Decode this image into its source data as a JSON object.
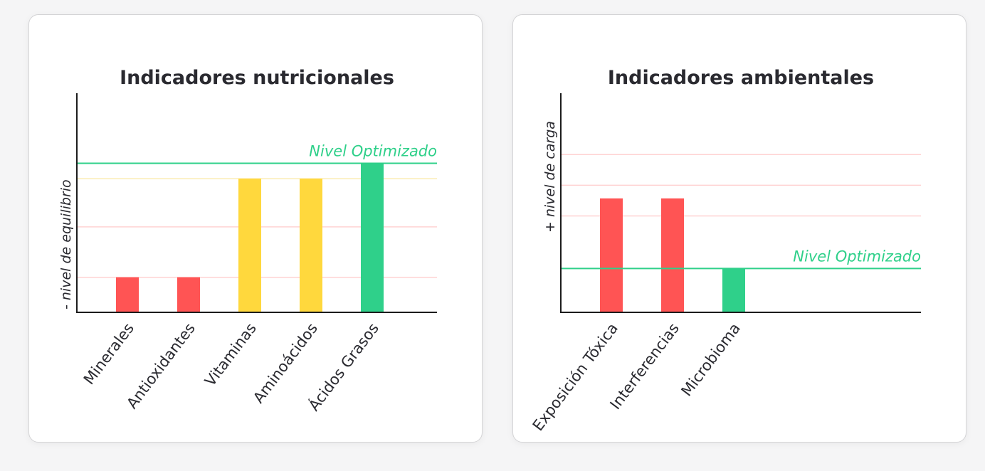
{
  "colors": {
    "red": "#ff5454",
    "yellow": "#ffd83d",
    "green": "#2fd08a",
    "grid_red": "#ffd2d2",
    "grid_yellow": "#fcecb2",
    "axis": "#1c1c1c",
    "text": "#2a2a30"
  },
  "chart_data": [
    {
      "type": "bar",
      "title": "Indicadores nutricionales",
      "ylabel": "- nivel de equilibrio",
      "xlabel": "",
      "categories": [
        "Minerales",
        "Antioxidantes",
        "Vitaminas",
        "Aminoácidos",
        "Ácidos Grasos"
      ],
      "values": [
        16,
        16,
        61,
        61,
        68
      ],
      "bar_colors": [
        "red",
        "red",
        "yellow",
        "yellow",
        "green"
      ],
      "ylim": [
        0,
        100
      ],
      "reference_lines": [
        {
          "value": 16,
          "color": "grid_red"
        },
        {
          "value": 39,
          "color": "grid_red"
        },
        {
          "value": 61,
          "color": "grid_yellow"
        }
      ],
      "optimal_line": {
        "value": 68,
        "label": "Nivel Optimizado",
        "color": "green"
      },
      "grid": false,
      "legend": "none"
    },
    {
      "type": "bar",
      "title": "Indicadores ambientales",
      "ylabel": "+ nivel de carga",
      "xlabel": "",
      "categories": [
        "Exposición Tóxica",
        "Interferencias",
        "Microbioma"
      ],
      "values": [
        52,
        52,
        20
      ],
      "bar_colors": [
        "red",
        "red",
        "green"
      ],
      "ylim": [
        0,
        100
      ],
      "reference_lines": [
        {
          "value": 44,
          "color": "grid_red"
        },
        {
          "value": 58,
          "color": "grid_red"
        },
        {
          "value": 72,
          "color": "grid_red"
        }
      ],
      "optimal_line": {
        "value": 20,
        "label": "Nivel Optimizado",
        "color": "green"
      },
      "grid": false,
      "legend": "none"
    }
  ]
}
